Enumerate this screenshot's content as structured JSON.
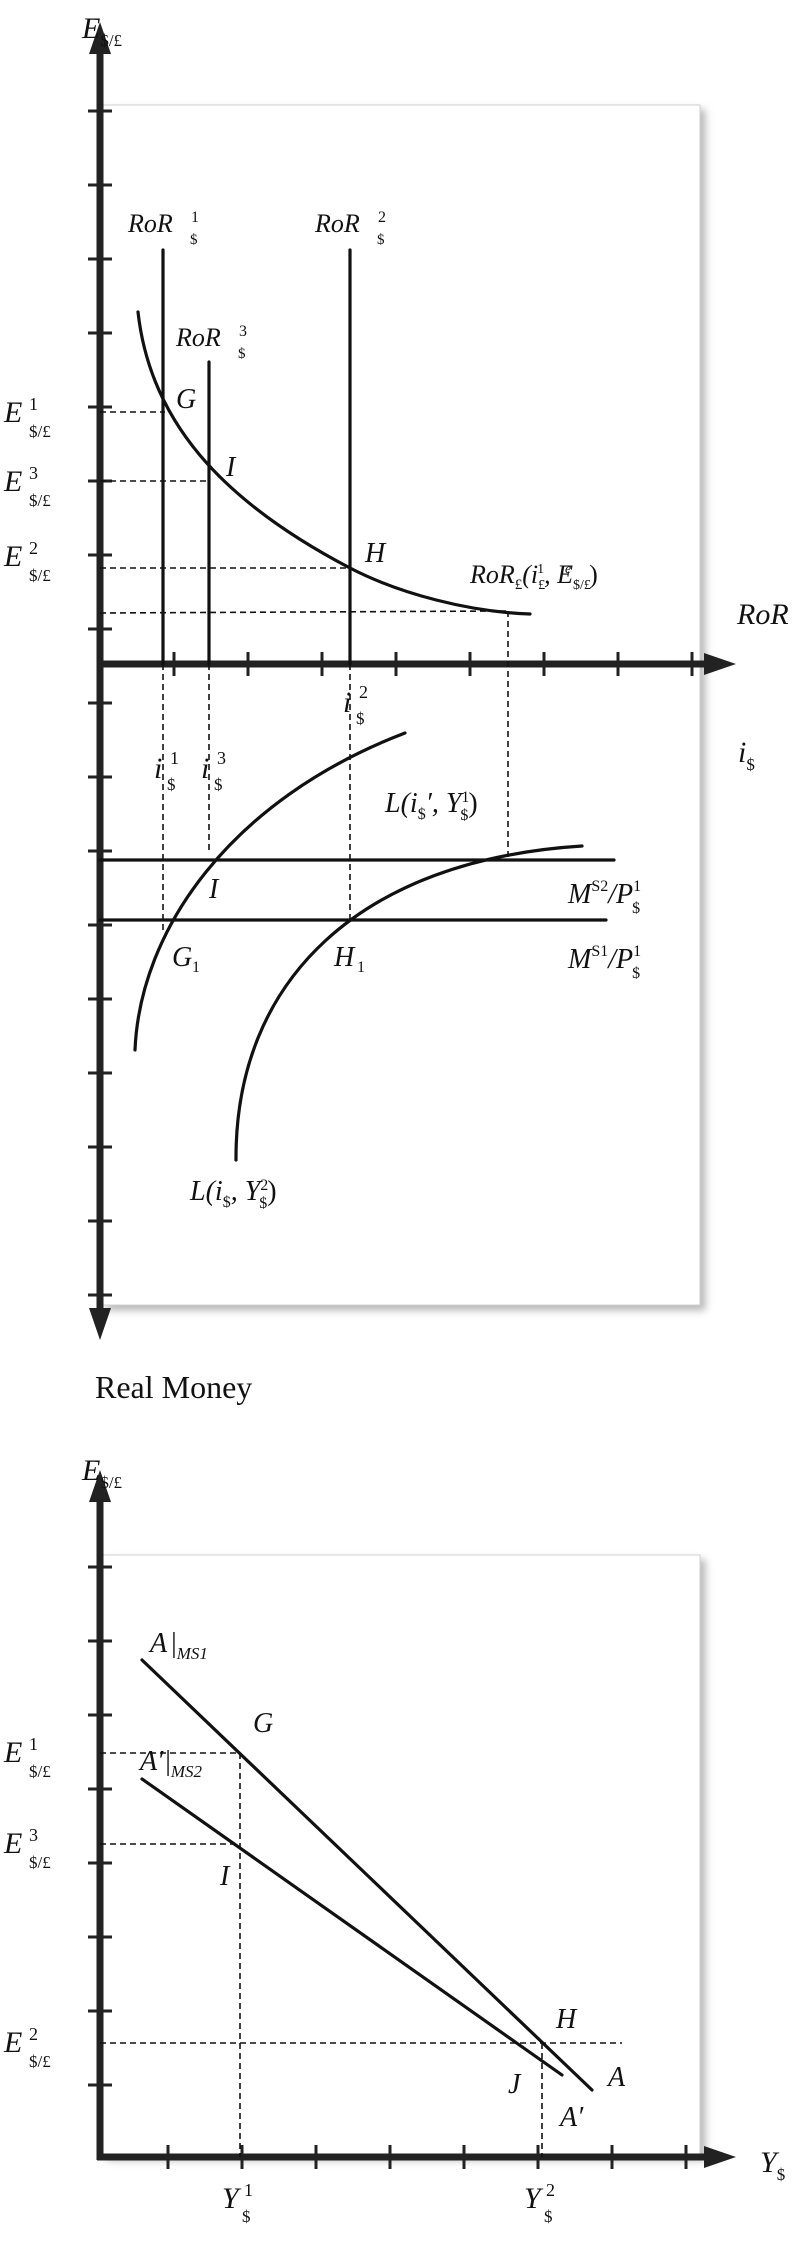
{
  "top_panel": {
    "y_axis_label": "E",
    "y_axis_sub": "$/£",
    "x_axis_label_right": "RoR",
    "x_axis_label_i": "i",
    "x_axis_i_sub": "$",
    "bottom_axis_label": "Real Money",
    "y_labels": {
      "e1": {
        "main": "E",
        "sup": "1",
        "sub": "$/£"
      },
      "e3": {
        "main": "E",
        "sup": "3",
        "sub": "$/£"
      },
      "e2": {
        "main": "E",
        "sup": "2",
        "sub": "$/£"
      }
    },
    "ror_labels": {
      "r1": {
        "main": "RoR",
        "sup": "1",
        "sub": "$"
      },
      "r2": {
        "main": "RoR",
        "sup": "2",
        "sub": "$"
      },
      "r3": {
        "main": "RoR",
        "sup": "3",
        "sub": "$"
      }
    },
    "ror_pound": {
      "main": "RoR",
      "sub": "£",
      "open": "(i",
      "i_sub": "£",
      "i_sup": "1",
      "comma": ", E",
      "e_sub": "$/£",
      "e_sup": "e",
      "close": ")"
    },
    "points": {
      "G": "G",
      "I": "I",
      "H": "H"
    },
    "i_labels": {
      "i1": {
        "main": "i",
        "sup": "1",
        "sub": "$"
      },
      "i3": {
        "main": "i",
        "sup": "3",
        "sub": "$"
      },
      "i2": {
        "main": "i",
        "sup": "2",
        "sub": "$"
      }
    },
    "money": {
      "L1": {
        "pre": "L(i",
        "sub1": "$",
        "mid": "′, Y",
        "sup2": "1",
        "sub2": "$",
        "close": ")"
      },
      "L2": {
        "pre": "L(i",
        "sub1": "$",
        "mid": ", Y",
        "sup2": "2",
        "sub2": "$",
        "close": ")"
      },
      "MS2": {
        "pre": "M",
        "sup1": "S2",
        "mid": "/P",
        "sup2": "1",
        "sub2": "$"
      },
      "MS1": {
        "pre": "M",
        "sup1": "S1",
        "mid": "/P",
        "sup2": "1",
        "sub2": "$"
      },
      "I_point": "I",
      "G1": {
        "main": "G",
        "sub": "1"
      },
      "H1": {
        "main": "H",
        "sub": "1"
      }
    }
  },
  "bottom_panel": {
    "y_axis_label": "E",
    "y_axis_sub": "$/£",
    "x_axis_label": "Y",
    "x_axis_sub": "$",
    "y_labels": {
      "e1": {
        "main": "E",
        "sup": "1",
        "sub": "$/£"
      },
      "e3": {
        "main": "E",
        "sup": "3",
        "sub": "$/£"
      },
      "e2": {
        "main": "E",
        "sup": "2",
        "sub": "$/£"
      }
    },
    "x_labels": {
      "y1": {
        "main": "Y",
        "sup": "1",
        "sub": "$"
      },
      "y2": {
        "main": "Y",
        "sup": "2",
        "sub": "$"
      }
    },
    "lines": {
      "A": {
        "main": "A",
        "bar": "|",
        "sub": "MS1"
      },
      "Ap": {
        "main": "A′",
        "bar": "|",
        "sub": "MS2"
      }
    },
    "points": {
      "G": "G",
      "I": "I",
      "H": "H",
      "J": "J",
      "A_end": "A",
      "Ap_end": "A′"
    }
  }
}
